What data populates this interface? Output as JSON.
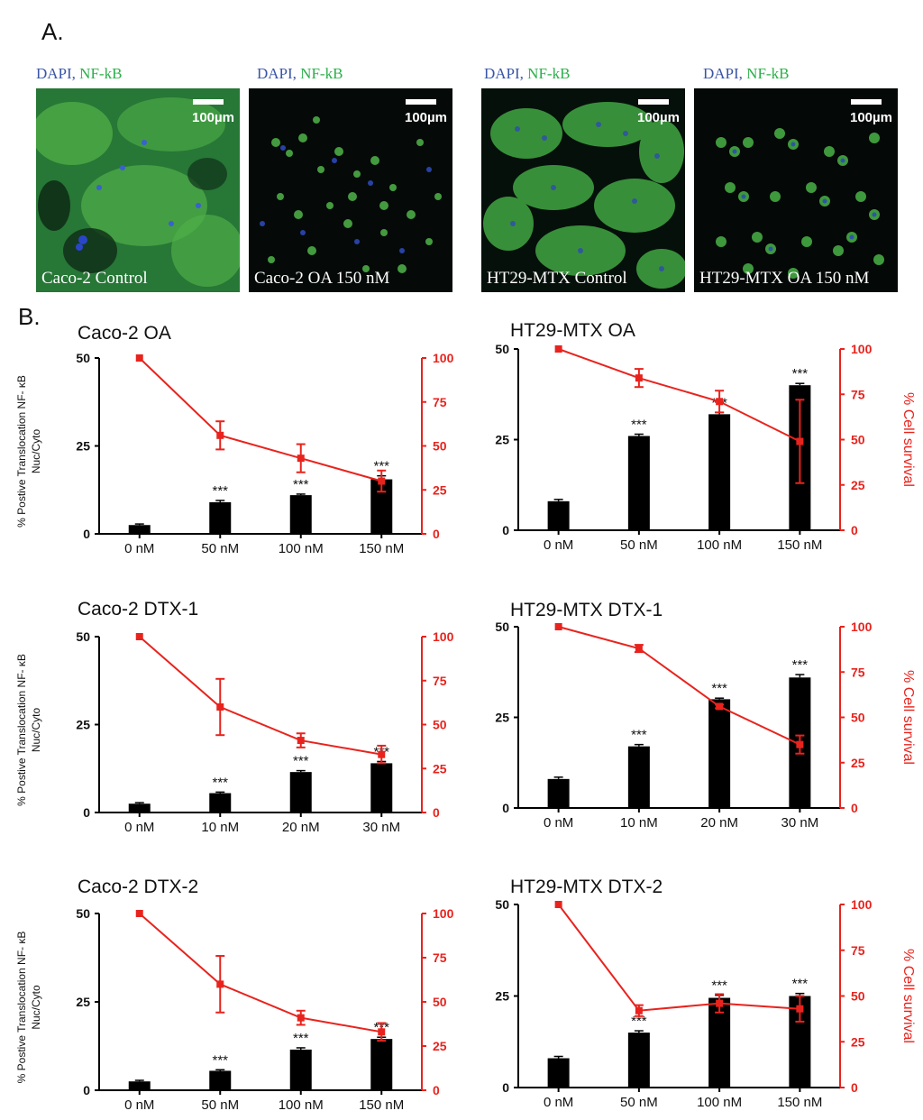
{
  "panel_a_label": "A.",
  "panel_b_label": "B.",
  "micrographs": [
    {
      "stain_dapi": "DAPI,",
      "stain_nfkb": "NF-kB",
      "scale": "100µm",
      "label": "Caco-2 Control"
    },
    {
      "stain_dapi": "DAPI,",
      "stain_nfkb": "NF-kB",
      "scale": "100µm",
      "label": "Caco-2 OA 150 nM"
    },
    {
      "stain_dapi": "DAPI,",
      "stain_nfkb": "NF-kB",
      "scale": "100µm",
      "label": "HT29-MTX Control"
    },
    {
      "stain_dapi": "DAPI,",
      "stain_nfkb": "NF-kB",
      "scale": "100µm",
      "label": "HT29-MTX OA 150 nM"
    }
  ],
  "colors": {
    "bar": "#000000",
    "line": "#e8231d",
    "axis": "#000000"
  },
  "chart_data": [
    {
      "type": "bar",
      "title": "Caco-2 OA",
      "categories": [
        "0 nM",
        "50 nM",
        "100 nM",
        "150 nM"
      ],
      "ylabel": "% Postive Translocation NF- κB Nuc/Cyto",
      "ylabel_line1": "% Postive Translocation NF- κB",
      "ylabel_line2": "Nuc/Cyto",
      "y2label": "",
      "ylim": [
        0,
        50
      ],
      "yticks": [
        "0",
        "25",
        "50"
      ],
      "y2lim": [
        0,
        100
      ],
      "y2ticks": [
        "0",
        "25",
        "50",
        "75",
        "100"
      ],
      "series": [
        {
          "name": "NF-κB translocation",
          "kind": "bar",
          "values": [
            2.5,
            9,
            11,
            15.5
          ],
          "errors": [
            0.3,
            0.5,
            0.3,
            1.0
          ]
        },
        {
          "name": "% Cell survival",
          "kind": "line",
          "axis": "right",
          "values": [
            100,
            56,
            43,
            30
          ],
          "errors": [
            0,
            8,
            8,
            6
          ]
        }
      ],
      "annotations": [
        "",
        "***",
        "***",
        "***"
      ]
    },
    {
      "type": "bar",
      "title": "HT29-MTX OA",
      "categories": [
        "0 nM",
        "50 nM",
        "100 nM",
        "150 nM"
      ],
      "ylabel": "",
      "ylabel_line1": "",
      "ylabel_line2": "",
      "y2label": "% Cell survival",
      "ylim": [
        0,
        50
      ],
      "yticks": [
        "0",
        "25",
        "50"
      ],
      "y2lim": [
        0,
        100
      ],
      "y2ticks": [
        "0",
        "25",
        "50",
        "75",
        "100"
      ],
      "series": [
        {
          "name": "NF-κB translocation",
          "kind": "bar",
          "values": [
            8,
            26,
            32,
            40
          ],
          "errors": [
            0.5,
            0.5,
            0.5,
            0.5
          ]
        },
        {
          "name": "% Cell survival",
          "kind": "line",
          "axis": "right",
          "values": [
            100,
            84,
            71,
            49
          ],
          "errors": [
            0,
            5,
            6,
            23
          ]
        }
      ],
      "annotations": [
        "",
        "***",
        "***",
        "***"
      ]
    },
    {
      "type": "bar",
      "title": "Caco-2 DTX-1",
      "categories": [
        "0 nM",
        "10 nM",
        "20 nM",
        "30 nM"
      ],
      "ylabel": "% Postive Translocation NF- κB Nuc/Cyto",
      "ylabel_line1": "% Postive Translocation NF- κB",
      "ylabel_line2": "Nuc/Cyto",
      "y2label": "",
      "ylim": [
        0,
        50
      ],
      "yticks": [
        "0",
        "25",
        "50"
      ],
      "y2lim": [
        0,
        100
      ],
      "y2ticks": [
        "0",
        "25",
        "50",
        "75",
        "100"
      ],
      "series": [
        {
          "name": "NF-κB translocation",
          "kind": "bar",
          "values": [
            2.5,
            5.5,
            11.5,
            14
          ],
          "errors": [
            0.3,
            0.3,
            0.4,
            0.5
          ]
        },
        {
          "name": "% Cell survival",
          "kind": "line",
          "axis": "right",
          "values": [
            100,
            60,
            41,
            33
          ],
          "errors": [
            0,
            16,
            4,
            5
          ]
        }
      ],
      "annotations": [
        "",
        "***",
        "***",
        "***"
      ]
    },
    {
      "type": "bar",
      "title": "HT29-MTX DTX-1",
      "categories": [
        "0 nM",
        "10 nM",
        "20 nM",
        "30 nM"
      ],
      "ylabel": "",
      "ylabel_line1": "",
      "ylabel_line2": "",
      "y2label": "% Cell survival",
      "ylim": [
        0,
        50
      ],
      "yticks": [
        "0",
        "25",
        "50"
      ],
      "y2lim": [
        0,
        100
      ],
      "y2ticks": [
        "0",
        "25",
        "50",
        "75",
        "100"
      ],
      "series": [
        {
          "name": "NF-κB translocation",
          "kind": "bar",
          "values": [
            8,
            17,
            30,
            36
          ],
          "errors": [
            0.5,
            0.5,
            0.3,
            0.8
          ]
        },
        {
          "name": "% Cell survival",
          "kind": "line",
          "axis": "right",
          "values": [
            100,
            88,
            56,
            35
          ],
          "errors": [
            0,
            2,
            1,
            5
          ]
        }
      ],
      "annotations": [
        "",
        "***",
        "***",
        "***"
      ]
    },
    {
      "type": "bar",
      "title": "Caco-2 DTX-2",
      "categories": [
        "0 nM",
        "50 nM",
        "100 nM",
        "150 nM"
      ],
      "ylabel": "% Postive Translocation NF- κB Nuc/Cyto",
      "ylabel_line1": "% Postive Translocation NF- κB",
      "ylabel_line2": "Nuc/Cyto",
      "y2label": "",
      "ylim": [
        0,
        50
      ],
      "yticks": [
        "0",
        "25",
        "50"
      ],
      "y2lim": [
        0,
        100
      ],
      "y2ticks": [
        "0",
        "25",
        "50",
        "75",
        "100"
      ],
      "series": [
        {
          "name": "NF-κB translocation",
          "kind": "bar",
          "values": [
            2.5,
            5.5,
            11.5,
            14.5
          ],
          "errors": [
            0.3,
            0.3,
            0.5,
            0.5
          ]
        },
        {
          "name": "% Cell survival",
          "kind": "line",
          "axis": "right",
          "values": [
            100,
            60,
            41,
            33
          ],
          "errors": [
            0,
            16,
            4,
            5
          ]
        }
      ],
      "annotations": [
        "",
        "***",
        "***",
        "***"
      ]
    },
    {
      "type": "bar",
      "title": "HT29-MTX DTX-2",
      "categories": [
        "0 nM",
        "50 nM",
        "100 nM",
        "150 nM"
      ],
      "ylabel": "",
      "ylabel_line1": "",
      "ylabel_line2": "",
      "y2label": "% Cell survival",
      "ylim": [
        0,
        50
      ],
      "yticks": [
        "0",
        "25",
        "50"
      ],
      "y2lim": [
        0,
        100
      ],
      "y2ticks": [
        "0",
        "25",
        "50",
        "75",
        "100"
      ],
      "series": [
        {
          "name": "NF-κB translocation",
          "kind": "bar",
          "values": [
            8,
            15,
            24.5,
            25
          ],
          "errors": [
            0.5,
            0.5,
            0.7,
            0.7
          ]
        },
        {
          "name": "% Cell survival",
          "kind": "line",
          "axis": "right",
          "values": [
            100,
            42,
            46,
            43
          ],
          "errors": [
            0,
            3,
            5,
            7
          ]
        }
      ],
      "annotations": [
        "",
        "***",
        "***",
        "***"
      ]
    }
  ]
}
